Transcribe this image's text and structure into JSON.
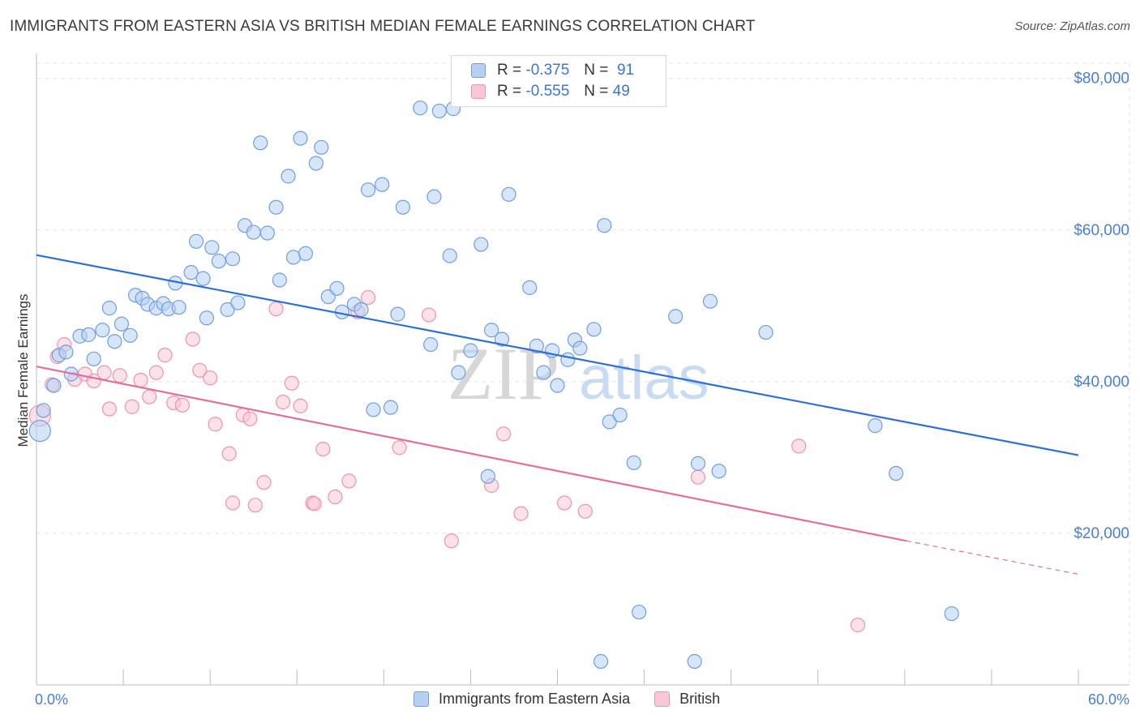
{
  "title": "IMMIGRANTS FROM EASTERN ASIA VS BRITISH MEDIAN FEMALE EARNINGS CORRELATION CHART",
  "source": "Source: ZipAtlas.com",
  "watermark": {
    "zip": "ZIP",
    "atlas": "atlas"
  },
  "colors": {
    "blue_fill": "#b7cff2",
    "blue_stroke": "#6f9ee0",
    "blue_line": "#2f6fd1",
    "pink_fill": "#f8c8d6",
    "pink_stroke": "#ec93ae",
    "pink_line": "#e0709a",
    "grid": "#e2e2e2",
    "axis_text": "#4a7fd0"
  },
  "legend": {
    "rows": [
      {
        "r_label": "R =",
        "r_value": "-0.375",
        "n_label": "N =",
        "n_value": "91"
      },
      {
        "r_label": "R =",
        "r_value": "-0.555",
        "n_label": "N =",
        "n_value": "49"
      }
    ]
  },
  "chart_data": {
    "type": "scatter",
    "title": "IMMIGRANTS FROM EASTERN ASIA VS BRITISH MEDIAN FEMALE EARNINGS CORRELATION CHART",
    "xlabel": "",
    "ylabel": "Median Female Earnings",
    "xlim": [
      0,
      60
    ],
    "ylim": [
      0,
      82000
    ],
    "x_tick_labels": [
      "0.0%",
      "60.0%"
    ],
    "y_ticks": [
      20000,
      40000,
      60000,
      80000
    ],
    "y_tick_labels": [
      "$20,000",
      "$40,000",
      "$60,000",
      "$80,000"
    ],
    "grid": true,
    "legend_position": "top-center",
    "series": [
      {
        "name": "Immigrants from Eastern Asia",
        "r": -0.375,
        "n": 91,
        "trend": {
          "x": [
            0,
            60
          ],
          "y": [
            56700,
            30300
          ]
        },
        "points": [
          [
            0.2,
            33500
          ],
          [
            0.4,
            36200
          ],
          [
            1.0,
            39500
          ],
          [
            1.3,
            43500
          ],
          [
            1.7,
            43900
          ],
          [
            2.0,
            41000
          ],
          [
            2.5,
            46000
          ],
          [
            3.0,
            46200
          ],
          [
            3.3,
            43000
          ],
          [
            3.8,
            46800
          ],
          [
            4.2,
            49700
          ],
          [
            4.5,
            45300
          ],
          [
            4.9,
            47600
          ],
          [
            5.4,
            46100
          ],
          [
            5.7,
            51400
          ],
          [
            6.1,
            51000
          ],
          [
            6.4,
            50200
          ],
          [
            6.9,
            49700
          ],
          [
            7.3,
            50300
          ],
          [
            7.6,
            49600
          ],
          [
            8.2,
            49800
          ],
          [
            8.0,
            53000
          ],
          [
            8.9,
            54400
          ],
          [
            9.2,
            58500
          ],
          [
            9.6,
            53600
          ],
          [
            9.8,
            48400
          ],
          [
            10.1,
            57700
          ],
          [
            10.5,
            55900
          ],
          [
            11.0,
            49500
          ],
          [
            11.3,
            56200
          ],
          [
            11.6,
            50400
          ],
          [
            12.0,
            60600
          ],
          [
            12.5,
            59700
          ],
          [
            12.9,
            71500
          ],
          [
            13.3,
            59600
          ],
          [
            13.8,
            63000
          ],
          [
            14.0,
            53400
          ],
          [
            14.5,
            67100
          ],
          [
            14.8,
            56400
          ],
          [
            15.2,
            72100
          ],
          [
            15.5,
            56900
          ],
          [
            16.1,
            68800
          ],
          [
            16.4,
            70900
          ],
          [
            16.8,
            51200
          ],
          [
            17.3,
            52300
          ],
          [
            17.6,
            49200
          ],
          [
            18.3,
            50200
          ],
          [
            18.7,
            49500
          ],
          [
            19.1,
            65300
          ],
          [
            19.4,
            36300
          ],
          [
            19.9,
            66000
          ],
          [
            20.4,
            36600
          ],
          [
            20.8,
            48900
          ],
          [
            21.1,
            63000
          ],
          [
            22.1,
            76100
          ],
          [
            22.7,
            44900
          ],
          [
            22.9,
            64400
          ],
          [
            23.2,
            75700
          ],
          [
            23.8,
            56600
          ],
          [
            24.0,
            76000
          ],
          [
            24.3,
            41200
          ],
          [
            25.0,
            44100
          ],
          [
            25.6,
            58100
          ],
          [
            26.0,
            27500
          ],
          [
            26.2,
            46800
          ],
          [
            26.8,
            45600
          ],
          [
            27.2,
            64700
          ],
          [
            28.4,
            52400
          ],
          [
            28.8,
            44700
          ],
          [
            29.2,
            41200
          ],
          [
            29.7,
            44100
          ],
          [
            30.0,
            39500
          ],
          [
            30.6,
            42900
          ],
          [
            31.0,
            45500
          ],
          [
            31.3,
            44400
          ],
          [
            32.1,
            46900
          ],
          [
            32.5,
            3100
          ],
          [
            33.0,
            34700
          ],
          [
            33.6,
            35600
          ],
          [
            32.7,
            60600
          ],
          [
            34.4,
            29300
          ],
          [
            34.7,
            9600
          ],
          [
            36.8,
            48600
          ],
          [
            37.9,
            3100
          ],
          [
            38.1,
            29200
          ],
          [
            38.8,
            50600
          ],
          [
            39.3,
            28200
          ],
          [
            42.0,
            46500
          ],
          [
            48.3,
            34200
          ],
          [
            49.5,
            27900
          ],
          [
            52.7,
            9400
          ]
        ]
      },
      {
        "name": "British",
        "r": -0.555,
        "n": 49,
        "trend": {
          "x": [
            0,
            50.1
          ],
          "y": [
            42000,
            19000
          ]
        },
        "trend_dashed": {
          "x": [
            50.1,
            60
          ],
          "y": [
            19000,
            14600
          ]
        },
        "points": [
          [
            0.2,
            35500
          ],
          [
            0.9,
            39600
          ],
          [
            1.2,
            43300
          ],
          [
            1.6,
            44900
          ],
          [
            2.2,
            40300
          ],
          [
            2.8,
            41000
          ],
          [
            3.3,
            40100
          ],
          [
            3.9,
            41200
          ],
          [
            4.2,
            36400
          ],
          [
            4.8,
            40800
          ],
          [
            5.5,
            36700
          ],
          [
            6.0,
            40200
          ],
          [
            6.5,
            38000
          ],
          [
            6.9,
            41200
          ],
          [
            7.4,
            43500
          ],
          [
            7.9,
            37200
          ],
          [
            8.4,
            36900
          ],
          [
            9.0,
            45600
          ],
          [
            9.4,
            41500
          ],
          [
            10.0,
            40500
          ],
          [
            10.3,
            34400
          ],
          [
            11.1,
            30500
          ],
          [
            11.3,
            24000
          ],
          [
            11.9,
            35600
          ],
          [
            12.3,
            35100
          ],
          [
            12.6,
            23700
          ],
          [
            13.1,
            26700
          ],
          [
            13.8,
            49600
          ],
          [
            14.2,
            37300
          ],
          [
            14.7,
            39800
          ],
          [
            15.2,
            36800
          ],
          [
            15.9,
            24000
          ],
          [
            16.5,
            31100
          ],
          [
            17.2,
            24800
          ],
          [
            18.0,
            26900
          ],
          [
            18.5,
            49200
          ],
          [
            19.1,
            51100
          ],
          [
            20.9,
            31300
          ],
          [
            22.6,
            48800
          ],
          [
            23.9,
            19000
          ],
          [
            26.2,
            26300
          ],
          [
            26.9,
            33100
          ],
          [
            27.9,
            22600
          ],
          [
            30.4,
            24000
          ],
          [
            31.6,
            22900
          ],
          [
            38.1,
            27400
          ],
          [
            43.9,
            31500
          ],
          [
            47.3,
            7900
          ],
          [
            16.0,
            23900
          ]
        ]
      }
    ]
  }
}
